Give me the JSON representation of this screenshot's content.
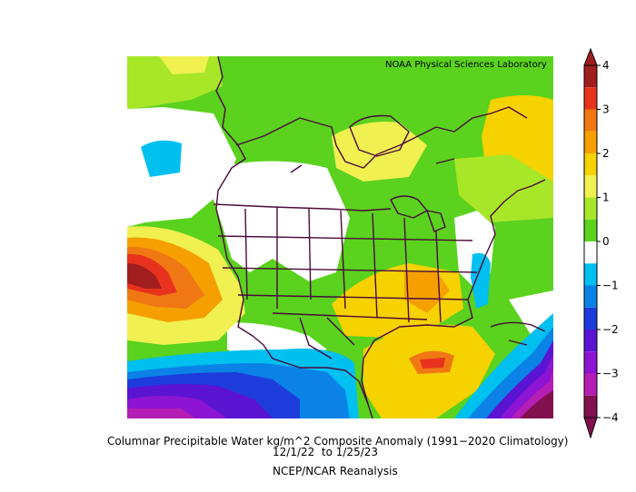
{
  "map": {
    "credit": "NOAA Physical Sciences Laboratory",
    "colorbar": {
      "ticks": [
        "4",
        "3",
        "2",
        "1",
        "0",
        "−1",
        "−2",
        "−3",
        "−4"
      ],
      "colors": [
        "#a01e1e",
        "#e8321e",
        "#f07814",
        "#f5a000",
        "#f5d200",
        "#f0f050",
        "#a8e628",
        "#5ad21e",
        "#ffffff",
        "#00c0f0",
        "#0a82e6",
        "#1e3cdc",
        "#5a14d2",
        "#8c14d2",
        "#b41eb4",
        "#82104e"
      ]
    },
    "caption": {
      "line1": "Columnar Precipitable Water kg/m^2 Composite Anomaly (1991−2020 Climatology)",
      "line2": "12/1/22  to 1/25/23",
      "line3": "NCEP/NCAR Reanalysis"
    }
  }
}
